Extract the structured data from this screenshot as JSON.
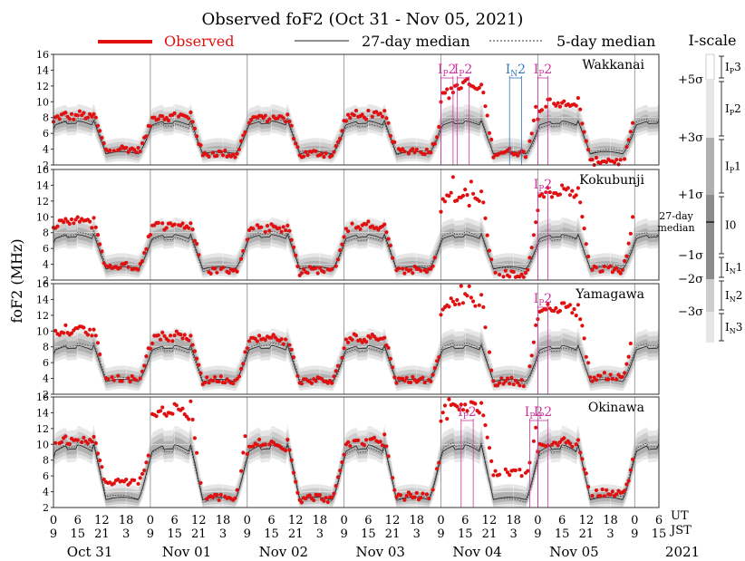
{
  "title": "Observed foF2 (Oct 31 - Nov 05, 2021)",
  "legend": {
    "observed": "Observed",
    "median27": "27-day median",
    "median5": "5-day median"
  },
  "ylabel": "foF2 (MHz)",
  "yticks": [
    "2",
    "4",
    "6",
    "8",
    "10",
    "12",
    "14",
    "16"
  ],
  "ut_label": "UT",
  "jst_label": "JST",
  "ut_ticks": [
    "0",
    "6",
    "12",
    "18"
  ],
  "jst_ticks": [
    "9",
    "15",
    "21",
    "3"
  ],
  "days": [
    "Oct 31",
    "Nov 01",
    "Nov 02",
    "Nov 03",
    "Nov 04",
    "Nov 05"
  ],
  "year": "2021",
  "colors": {
    "observed": "#e01010",
    "median": "#222222",
    "band1": "#b0b0b0",
    "band2": "#cdcdcd",
    "band3": "#e6e6e6",
    "pink": "#cc3399",
    "blue": "#3377bb"
  },
  "iscale": {
    "title": "I-scale",
    "sigmas": [
      "+5σ",
      "+3σ",
      "+1σ",
      "27-day",
      "median",
      "−1σ",
      "−2σ",
      "−3σ"
    ],
    "classes": [
      {
        "main": "I",
        "sub": "P",
        "num": "3"
      },
      {
        "main": "I",
        "sub": "P",
        "num": "2"
      },
      {
        "main": "I",
        "sub": "P",
        "num": "1"
      },
      {
        "main": "I0",
        "sub": "",
        "num": ""
      },
      {
        "main": "I",
        "sub": "N",
        "num": "1"
      },
      {
        "main": "I",
        "sub": "N",
        "num": "2"
      },
      {
        "main": "I",
        "sub": "N",
        "num": "3"
      }
    ]
  },
  "chart_data": {
    "type": "scatter",
    "title": "Observed foF2 (Oct 31 - Nov 05, 2021)",
    "xlabel": "UT / JST",
    "ylabel": "foF2 (MHz)",
    "ylim": [
      2,
      16
    ],
    "xrange_days": [
      "Oct 31",
      "Nov 01",
      "Nov 02",
      "Nov 03",
      "Nov 04",
      "Nov 05"
    ],
    "grid": true,
    "stations": [
      {
        "name": "Wakkanai",
        "peak": 8.5,
        "night": 3.2,
        "median_peak": 7.6,
        "median_night": 3.4,
        "observed_peaks": [
          8.5,
          8.5,
          8.3,
          8.6,
          12.5,
          10.2
        ],
        "observed_nights": [
          3.8,
          3.2,
          3.2,
          3.6,
          3.4,
          2.3
        ],
        "annotations": [
          {
            "label": "IP2",
            "day": 4,
            "hour_start": 0,
            "hour_end": 3,
            "color": "pink"
          },
          {
            "label": "IP2",
            "day": 4,
            "hour_start": 4,
            "hour_end": 7,
            "color": "pink"
          },
          {
            "label": "IN2",
            "day": 4,
            "hour_start": 17,
            "hour_end": 20,
            "color": "blue"
          },
          {
            "label": "IP2",
            "day": 5,
            "hour_start": 0,
            "hour_end": 2.5,
            "color": "pink"
          }
        ]
      },
      {
        "name": "Kokubunji",
        "peak": 9.5,
        "night": 3.0,
        "median_peak": 7.8,
        "median_night": 3.4,
        "observed_peaks": [
          9.8,
          9.4,
          9.0,
          9.2,
          13.3,
          13.8
        ],
        "observed_nights": [
          3.5,
          3.0,
          3.0,
          3.0,
          2.5,
          3.2
        ],
        "annotations": [
          {
            "label": "IP2",
            "day": 5,
            "hour_start": 0,
            "hour_end": 2.5,
            "color": "pink"
          }
        ]
      },
      {
        "name": "Yamagawa",
        "peak": 9.0,
        "night": 3.6,
        "median_peak": 8.2,
        "median_night": 3.6,
        "observed_peaks": [
          10.5,
          9.6,
          9.4,
          9.5,
          14.5,
          13.5
        ],
        "observed_nights": [
          3.8,
          3.6,
          3.5,
          3.6,
          3.4,
          4.0
        ],
        "annotations": [
          {
            "label": "IP2",
            "day": 5,
            "hour_start": 0,
            "hour_end": 2.5,
            "color": "pink"
          }
        ]
      },
      {
        "name": "Okinawa",
        "peak": 11.0,
        "night": 3.2,
        "median_peak": 10.0,
        "median_night": 3.0,
        "observed_peaks": [
          10.8,
          15.0,
          10.5,
          10.8,
          15.5,
          10.5
        ],
        "observed_nights": [
          5.0,
          3.0,
          3.0,
          3.2,
          6.2,
          3.6
        ],
        "annotations": [
          {
            "label": "IP2",
            "day": 4,
            "hour_start": 5,
            "hour_end": 8,
            "color": "pink"
          },
          {
            "label": "IP2",
            "day": 4,
            "hour_start": 22,
            "hour_end": 24,
            "color": "pink"
          },
          {
            "label": "IP2",
            "day": 5,
            "hour_start": 0,
            "hour_end": 2.5,
            "color": "pink"
          }
        ]
      }
    ]
  }
}
